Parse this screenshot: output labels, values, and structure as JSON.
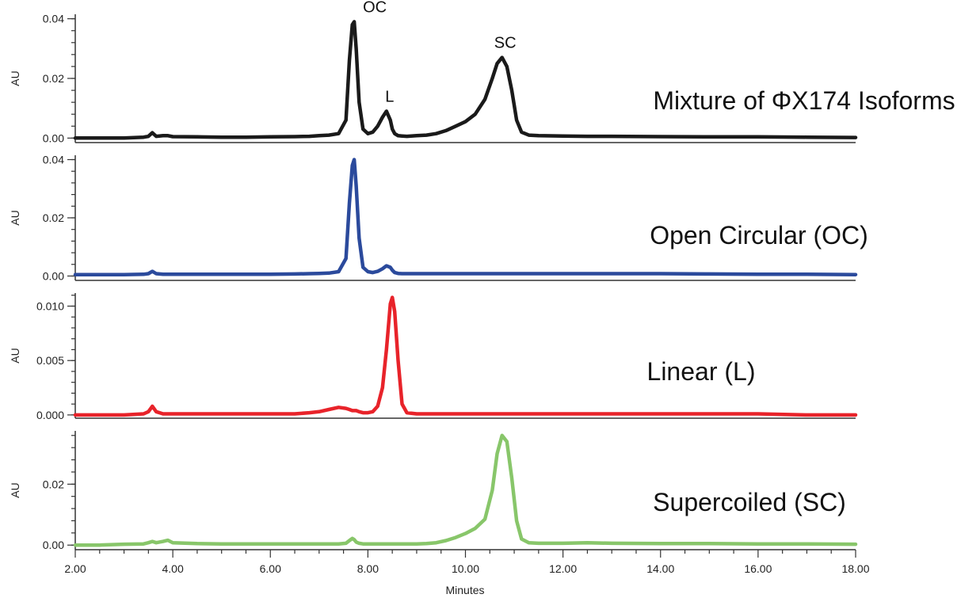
{
  "chart_data": {
    "type": "line",
    "x": [
      2.0,
      2.5,
      3.0,
      3.4,
      3.5,
      3.58,
      3.66,
      3.8,
      3.9,
      4.0,
      4.5,
      5.0,
      5.5,
      6.0,
      6.5,
      6.8,
      7.0,
      7.2,
      7.4,
      7.55,
      7.62,
      7.68,
      7.72,
      7.76,
      7.82,
      7.9,
      8.0,
      8.1,
      8.2,
      8.3,
      8.38,
      8.46,
      8.5,
      8.55,
      8.62,
      8.7,
      8.8,
      9.0,
      9.2,
      9.4,
      9.6,
      9.8,
      10.0,
      10.2,
      10.4,
      10.55,
      10.65,
      10.75,
      10.85,
      10.95,
      11.05,
      11.15,
      11.3,
      11.5,
      12.0,
      12.5,
      13.0,
      14.0,
      15.0,
      16.0,
      17.0,
      18.0
    ],
    "series": [
      {
        "color": "#1a1a1a",
        "values": [
          0.0,
          0.0,
          0.0,
          0.0003,
          0.0006,
          0.0018,
          0.0006,
          0.0008,
          0.0008,
          0.0005,
          0.0004,
          0.0003,
          0.0003,
          0.0004,
          0.0005,
          0.0006,
          0.0008,
          0.001,
          0.0015,
          0.006,
          0.026,
          0.038,
          0.039,
          0.03,
          0.012,
          0.003,
          0.0015,
          0.002,
          0.004,
          0.007,
          0.009,
          0.006,
          0.003,
          0.0015,
          0.0008,
          0.0007,
          0.0006,
          0.0008,
          0.001,
          0.0015,
          0.0025,
          0.004,
          0.0055,
          0.008,
          0.013,
          0.02,
          0.025,
          0.027,
          0.024,
          0.016,
          0.006,
          0.002,
          0.001,
          0.0008,
          0.0007,
          0.0006,
          0.0006,
          0.0005,
          0.0004,
          0.0004,
          0.0003,
          0.0002
        ]
      },
      {
        "color": "#2b4a9c",
        "values": [
          0.0005,
          0.0005,
          0.0005,
          0.0006,
          0.0008,
          0.0016,
          0.0008,
          0.0006,
          0.0006,
          0.0006,
          0.0006,
          0.0006,
          0.0006,
          0.0006,
          0.0007,
          0.0008,
          0.0009,
          0.001,
          0.0015,
          0.006,
          0.025,
          0.038,
          0.04,
          0.031,
          0.013,
          0.003,
          0.0015,
          0.0012,
          0.0016,
          0.0025,
          0.0035,
          0.003,
          0.002,
          0.0012,
          0.0009,
          0.0008,
          0.0008,
          0.0008,
          0.0008,
          0.0008,
          0.0008,
          0.0008,
          0.0008,
          0.0008,
          0.0008,
          0.0008,
          0.0008,
          0.0008,
          0.0008,
          0.0008,
          0.0008,
          0.0008,
          0.0008,
          0.0008,
          0.0008,
          0.0008,
          0.0008,
          0.0008,
          0.0007,
          0.0006,
          0.0006,
          0.0005
        ]
      },
      {
        "color": "#e8232a",
        "values": [
          0.0,
          0.0,
          0.0,
          0.0001,
          0.0003,
          0.0008,
          0.0003,
          0.0001,
          0.0001,
          0.0001,
          0.0001,
          0.0001,
          0.0001,
          0.0001,
          0.0001,
          0.0002,
          0.0003,
          0.0005,
          0.0007,
          0.0006,
          0.0005,
          0.0004,
          0.0004,
          0.0004,
          0.0003,
          0.0002,
          0.0002,
          0.0003,
          0.0008,
          0.0025,
          0.006,
          0.0102,
          0.0108,
          0.0095,
          0.005,
          0.001,
          0.0002,
          0.0001,
          0.0001,
          0.0001,
          0.0001,
          0.0001,
          0.0001,
          0.0001,
          0.0001,
          0.0001,
          0.0001,
          0.0001,
          0.0001,
          0.0001,
          0.0001,
          0.0001,
          0.0001,
          0.0001,
          0.0001,
          0.0001,
          0.0001,
          0.0001,
          0.0001,
          0.0001,
          0.0,
          0.0
        ]
      },
      {
        "color": "#88c66a",
        "values": [
          0.0,
          0.0,
          0.0003,
          0.0004,
          0.0008,
          0.0012,
          0.0008,
          0.0012,
          0.0016,
          0.0008,
          0.0005,
          0.0004,
          0.0004,
          0.0004,
          0.0004,
          0.0004,
          0.0004,
          0.0004,
          0.0004,
          0.0006,
          0.0015,
          0.0022,
          0.0018,
          0.001,
          0.0006,
          0.0004,
          0.0004,
          0.0004,
          0.0004,
          0.0004,
          0.0004,
          0.0004,
          0.0004,
          0.0004,
          0.0004,
          0.0004,
          0.0004,
          0.0004,
          0.0005,
          0.0008,
          0.0015,
          0.0025,
          0.0038,
          0.0055,
          0.0085,
          0.018,
          0.03,
          0.036,
          0.034,
          0.022,
          0.008,
          0.002,
          0.0008,
          0.0006,
          0.0006,
          0.0008,
          0.0006,
          0.0005,
          0.0005,
          0.0004,
          0.0004,
          0.0003
        ]
      }
    ],
    "panels": [
      {
        "label": "Mixture of ΦX174 Isoforms",
        "ylabel": "AU",
        "ylim": [
          -0.0015,
          0.0415
        ],
        "yticks": [
          "0.00",
          "0.02",
          "0.04"
        ],
        "ytick_values": [
          0.0,
          0.02,
          0.04
        ]
      },
      {
        "label": "Open Circular (OC)",
        "ylabel": "AU",
        "ylim": [
          -0.0015,
          0.0415
        ],
        "yticks": [
          "0.00",
          "0.02",
          "0.04"
        ],
        "ytick_values": [
          0.0,
          0.02,
          0.04
        ]
      },
      {
        "label": "Linear (L)",
        "ylabel": "AU",
        "ylim": [
          -0.0003,
          0.0112
        ],
        "yticks": [
          "0.000",
          "0.005",
          "0.010"
        ],
        "ytick_values": [
          0.0,
          0.005,
          0.01
        ]
      },
      {
        "label": "Supercoiled (SC)",
        "ylabel": "AU",
        "ylim": [
          -0.0015,
          0.0375
        ],
        "yticks": [
          "0.00",
          "0.02"
        ],
        "ytick_values": [
          0.0,
          0.02
        ]
      }
    ],
    "annotations": [
      {
        "text": "OC",
        "x": 7.72,
        "y": 0.039
      },
      {
        "text": "L",
        "x": 8.38,
        "y": 0.009
      },
      {
        "text": "SC",
        "x": 10.75,
        "y": 0.027
      }
    ],
    "xlabel": "Minutes",
    "xlim": [
      2.0,
      18.0
    ],
    "xticks": [
      "2.00",
      "4.00",
      "6.00",
      "8.00",
      "10.00",
      "12.00",
      "14.00",
      "16.00",
      "18.00"
    ],
    "xtick_values": [
      2,
      4,
      6,
      8,
      10,
      12,
      14,
      16,
      18
    ],
    "grid": false
  }
}
